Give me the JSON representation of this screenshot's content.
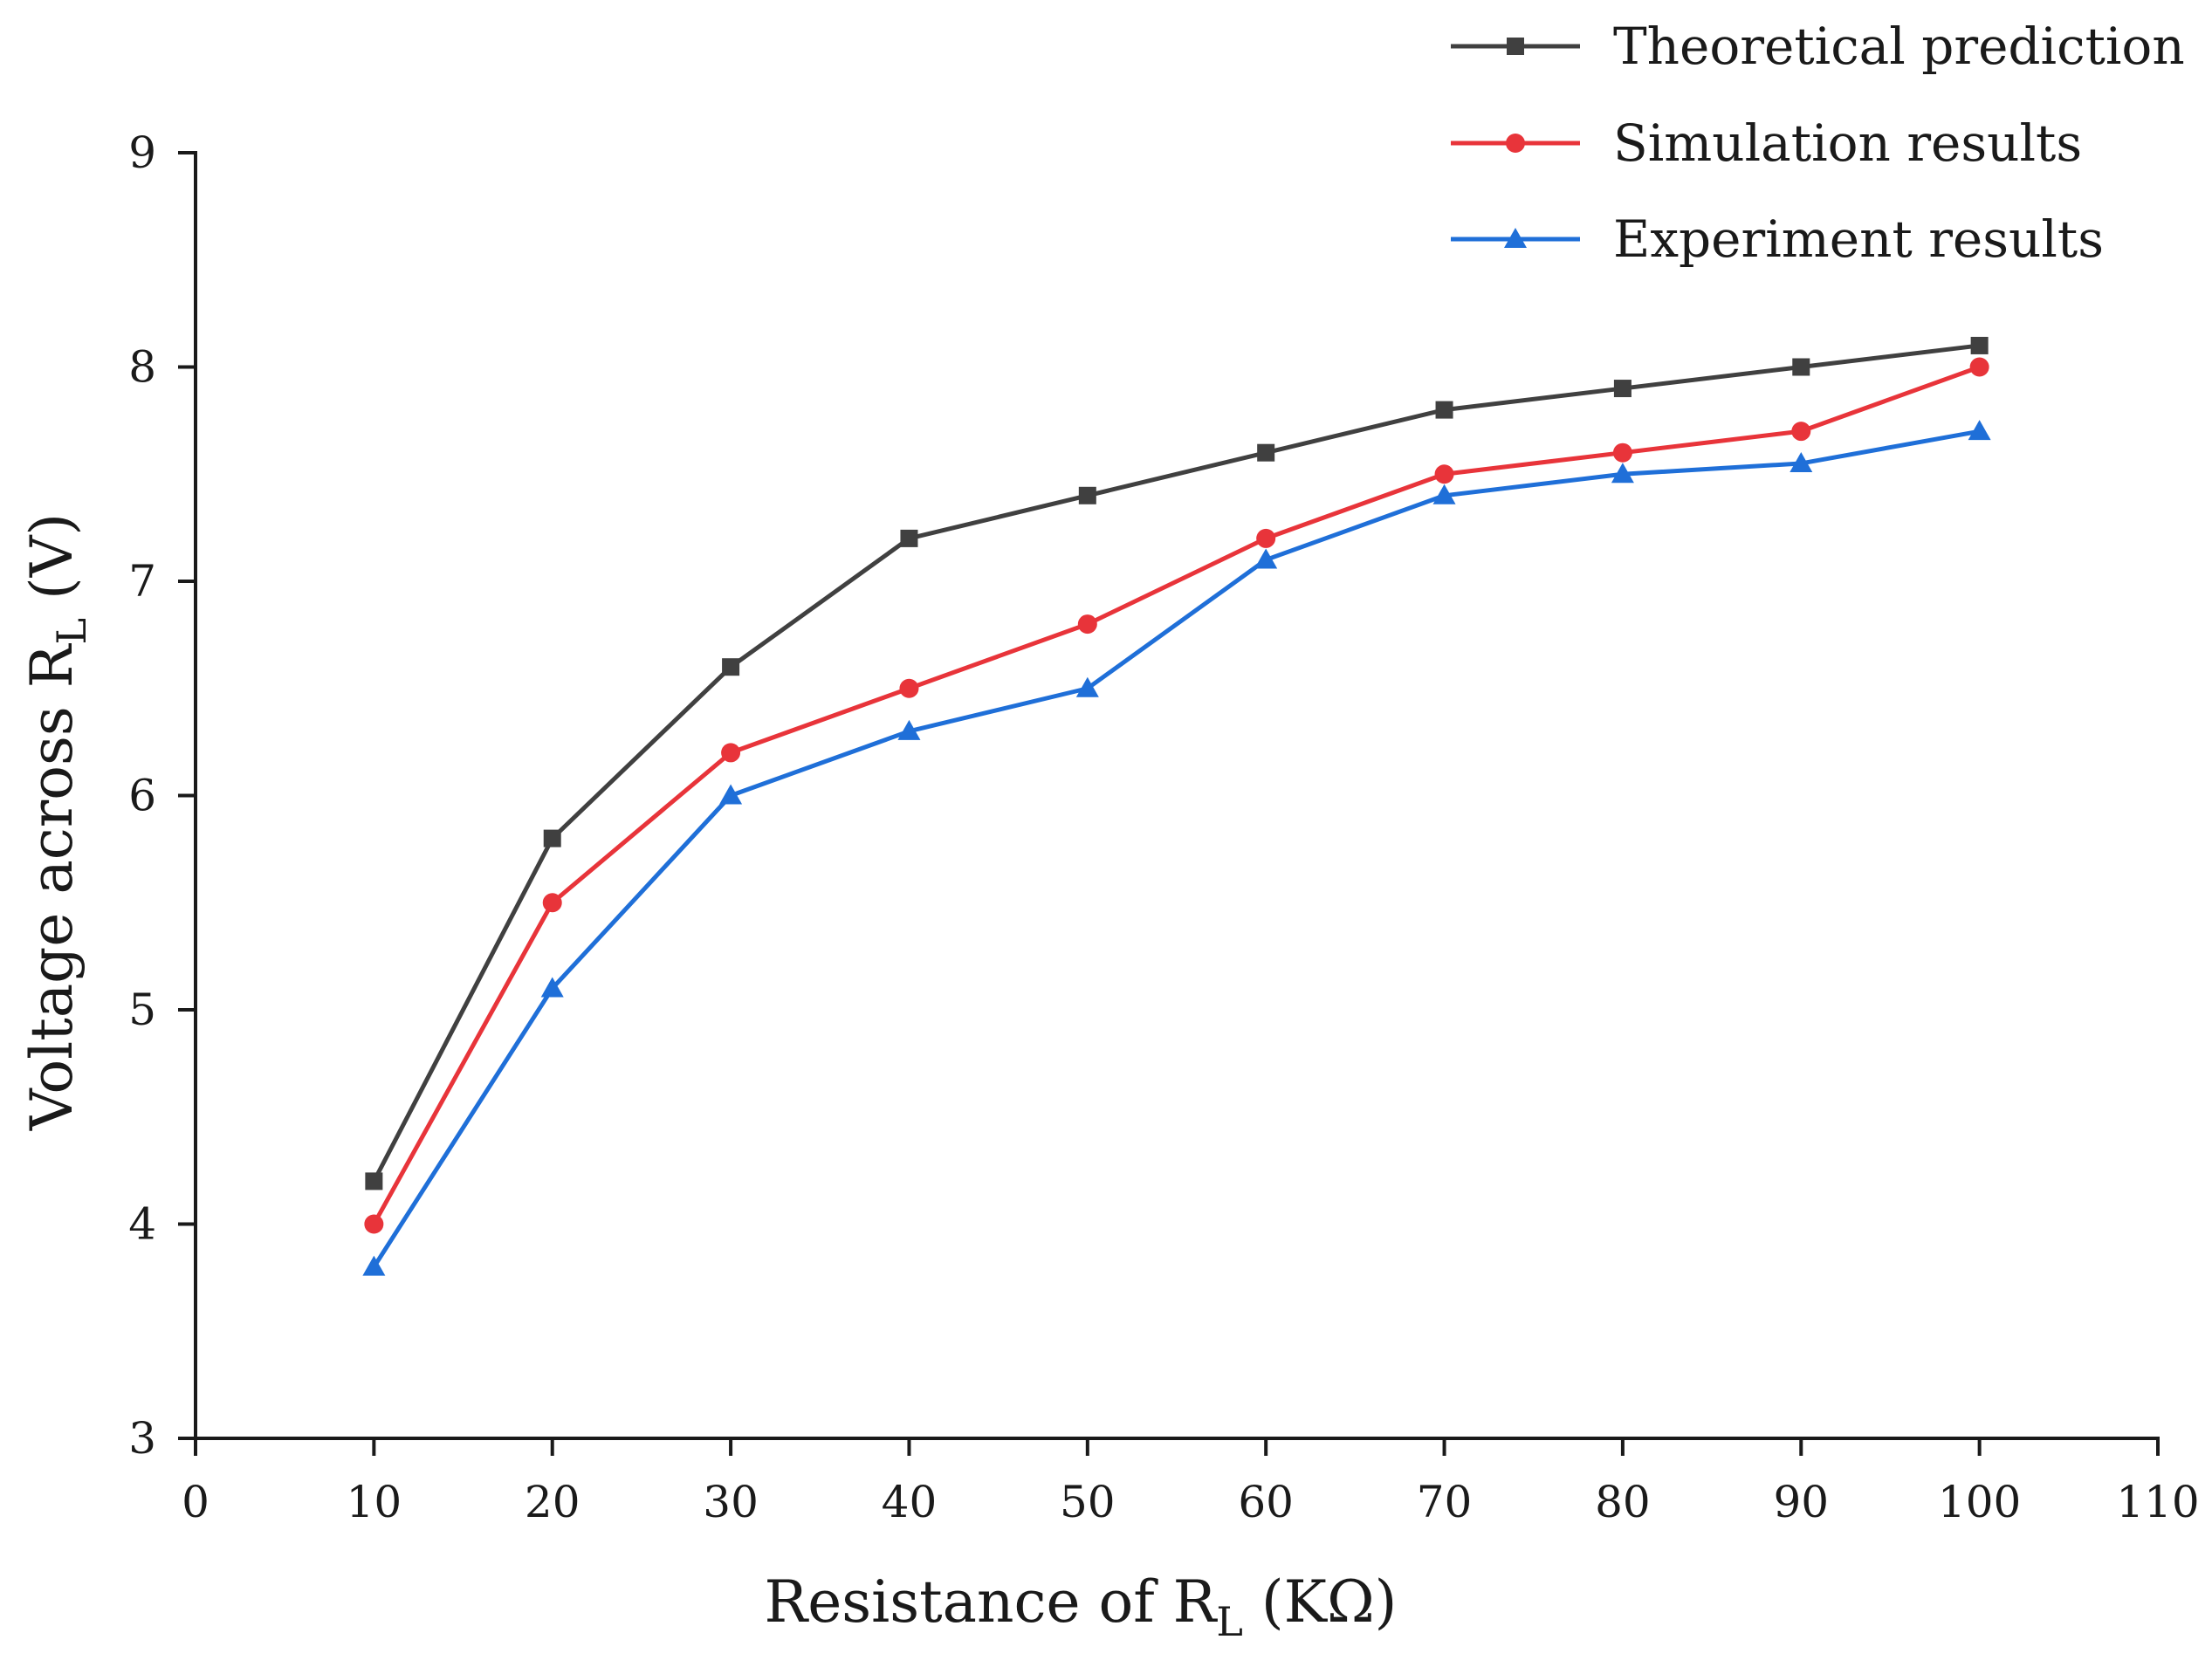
{
  "chart_data": {
    "type": "line",
    "title": "",
    "xlabel": {
      "main": "Resistance of R",
      "sub": "L",
      "suffix": " (KΩ)"
    },
    "ylabel": {
      "main": "Voltage across R",
      "sub": "L",
      "suffix": " (V)"
    },
    "xlim": [
      0,
      110
    ],
    "ylim": [
      3,
      9
    ],
    "x_ticks": [
      0,
      10,
      20,
      30,
      40,
      50,
      60,
      70,
      80,
      90,
      100,
      110
    ],
    "y_ticks": [
      3,
      4,
      5,
      6,
      7,
      8,
      9
    ],
    "grid": false,
    "legend_position": "top-right",
    "x": [
      10,
      20,
      30,
      40,
      50,
      60,
      70,
      80,
      90,
      100
    ],
    "series": [
      {
        "name": "Theoretical prediction",
        "marker": "square",
        "color": "#404040",
        "values": [
          4.2,
          5.8,
          6.6,
          7.2,
          7.4,
          7.6,
          7.8,
          7.9,
          8.0,
          8.1
        ]
      },
      {
        "name": "Simulation results",
        "marker": "circle",
        "color": "#e8343a",
        "values": [
          4.0,
          5.5,
          6.2,
          6.5,
          6.8,
          7.2,
          7.5,
          7.6,
          7.7,
          8.0
        ]
      },
      {
        "name": "Experiment results",
        "marker": "triangle",
        "color": "#1f6fd8",
        "values": [
          3.8,
          5.1,
          6.0,
          6.3,
          6.5,
          7.1,
          7.4,
          7.5,
          7.55,
          7.7
        ]
      }
    ]
  }
}
